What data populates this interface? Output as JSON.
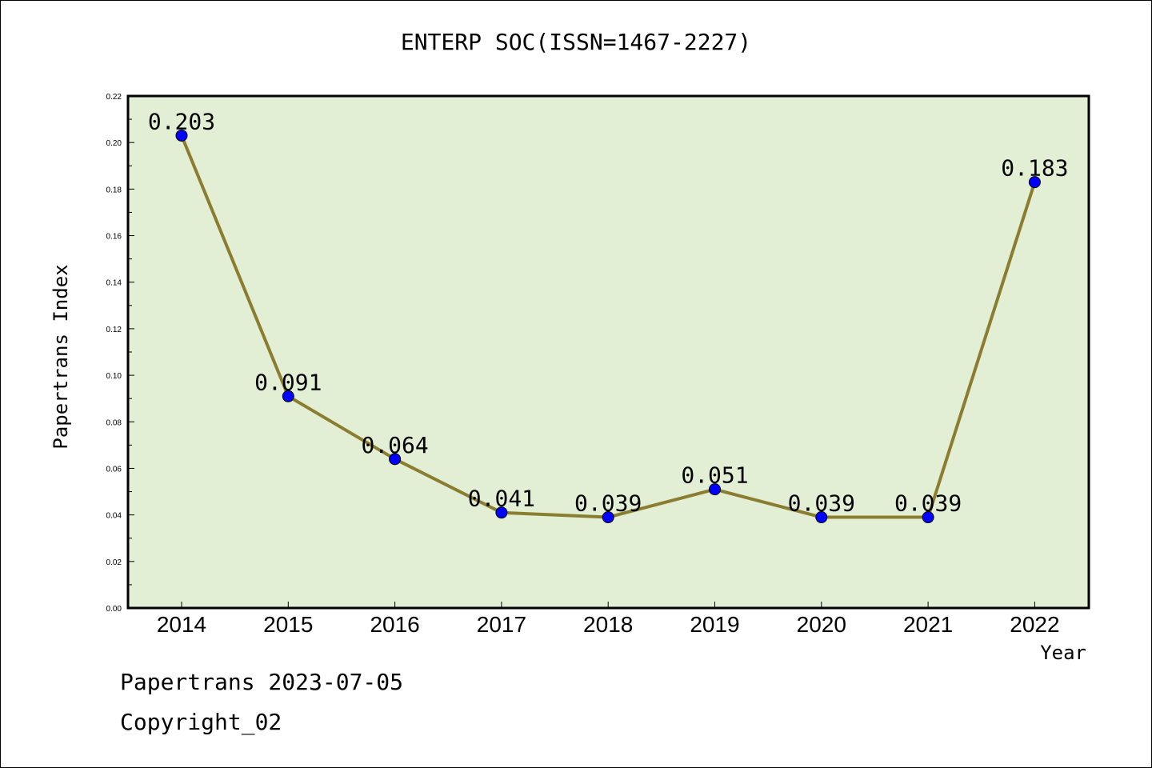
{
  "chart_data": {
    "type": "line",
    "title": "ENTERP SOC(ISSN=1467-2227)",
    "xlabel": "Year",
    "ylabel": "Papertrans Index",
    "categories": [
      "2014",
      "2015",
      "2016",
      "2017",
      "2018",
      "2019",
      "2020",
      "2021",
      "2022"
    ],
    "values": [
      0.203,
      0.091,
      0.064,
      0.041,
      0.039,
      0.051,
      0.039,
      0.039,
      0.183
    ],
    "data_labels": [
      "0.203",
      "0.091",
      "0.064",
      "0.041",
      "0.039",
      "0.051",
      "0.039",
      "0.039",
      "0.183"
    ],
    "ylim": [
      0,
      0.22
    ],
    "yticks": [
      "0.00",
      "0.02",
      "0.04",
      "0.06",
      "0.08",
      "0.10",
      "0.12",
      "0.14",
      "0.16",
      "0.18",
      "0.20",
      "0.22"
    ],
    "grid": false,
    "colors": {
      "plot_bg": "#e2efd5",
      "line": "#8b7d2f",
      "marker": "#0000ff"
    }
  },
  "footer": {
    "line1": "Papertrans 2023-07-05",
    "line2": "Copyright_02"
  }
}
